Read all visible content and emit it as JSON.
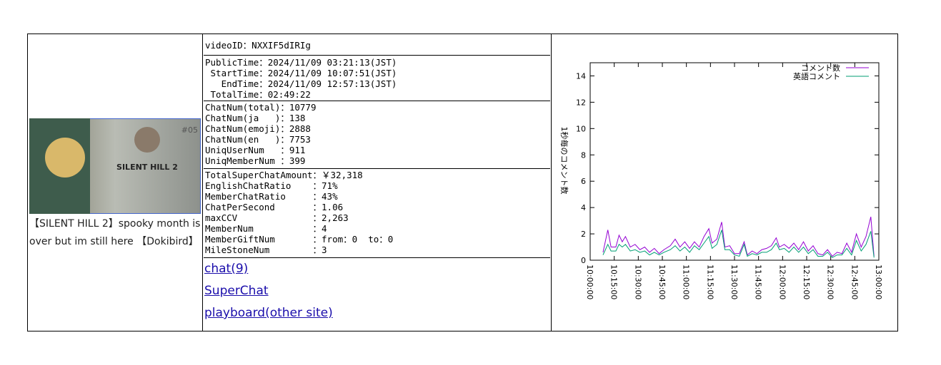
{
  "video": {
    "title": "【SILENT HILL 2】spooky month is over but im still here 【Dokibird】",
    "thumbnail": {
      "text": "SILENT HILL 2",
      "episode": "#05"
    }
  },
  "info": {
    "video_id": "videoID：NXXIF5dIRIg",
    "times": [
      "PublicTime：2024/11/09 03:21:13(JST)",
      " StartTime：2024/11/09 10:07:51(JST)",
      "   EndTime：2024/11/09 12:57:13(JST)",
      " TotalTime：02:49:22"
    ],
    "chat": [
      "ChatNum(total)：10779",
      "ChatNum(ja   )：138",
      "ChatNum(emoji)：2888",
      "ChatNum(en   )：7753",
      "UniqUserNum   ：911",
      "UniqMemberNum ：399"
    ],
    "stats": [
      "TotalSuperChatAmount：￥32,318",
      "EnglishChatRatio    ：71%",
      "MemberChatRatio     ：43%",
      "ChatPerSecond       ：1.06",
      "maxCCV              ：2,263",
      "MemberNum           ：4",
      "MemberGiftNum       ：from：0  to：0",
      "MileStoneNum        ：3"
    ]
  },
  "links": [
    "chat(9)",
    "SuperChat",
    "playboard(other site)"
  ],
  "chart_data": {
    "type": "line",
    "y_label": "1秒毎のコメント数",
    "x": [
      "10:08:00",
      "10:11:00",
      "10:13:00",
      "10:16:00",
      "10:18:00",
      "10:20:00",
      "10:22:00",
      "10:25:00",
      "10:28:00",
      "10:31:00",
      "10:34:00",
      "10:37:00",
      "10:40:00",
      "10:43:00",
      "10:46:00",
      "10:50:00",
      "10:53:00",
      "10:56:00",
      "10:59:00",
      "11:02:00",
      "11:05:00",
      "11:08:00",
      "11:11:00",
      "11:14:00",
      "11:16:00",
      "11:19:00",
      "11:22:00",
      "11:24:00",
      "11:27:00",
      "11:30:00",
      "11:33:00",
      "11:36:00",
      "11:38:00",
      "11:41:00",
      "11:44:00",
      "11:47:00",
      "11:50:00",
      "11:53:00",
      "11:56:00",
      "11:58:00",
      "12:01:00",
      "12:04:00",
      "12:07:00",
      "12:10:00",
      "12:13:00",
      "12:16:00",
      "12:19:00",
      "12:22:00",
      "12:25:00",
      "12:28:00",
      "12:31:00",
      "12:34:00",
      "12:37:00",
      "12:40:00",
      "12:43:00",
      "12:46:00",
      "12:49:00",
      "12:52:00",
      "12:55:00",
      "12:57:00"
    ],
    "series": [
      {
        "name": "コメント数",
        "color": "#9400d3",
        "values": [
          0.6,
          2.3,
          1.0,
          1.0,
          1.9,
          1.4,
          1.8,
          1.0,
          1.2,
          0.8,
          1.0,
          0.6,
          0.9,
          0.5,
          0.8,
          1.1,
          1.6,
          1.0,
          1.4,
          0.9,
          1.4,
          1.0,
          1.8,
          2.4,
          1.3,
          1.6,
          2.9,
          1.0,
          1.1,
          0.5,
          0.5,
          1.4,
          0.4,
          0.7,
          0.5,
          0.8,
          0.9,
          1.1,
          1.7,
          1.0,
          1.2,
          0.9,
          1.3,
          0.8,
          1.4,
          0.7,
          1.1,
          0.5,
          0.4,
          0.8,
          0.3,
          0.6,
          0.5,
          1.3,
          0.6,
          2.0,
          1.0,
          1.8,
          3.3,
          0.3
        ]
      },
      {
        "name": "英語コメント",
        "color": "#009e73",
        "values": [
          0.4,
          1.2,
          0.7,
          0.7,
          1.2,
          1.0,
          1.2,
          0.7,
          0.8,
          0.6,
          0.7,
          0.4,
          0.6,
          0.4,
          0.6,
          0.8,
          1.1,
          0.7,
          1.0,
          0.6,
          1.1,
          0.8,
          1.3,
          1.8,
          0.9,
          1.2,
          2.3,
          0.8,
          0.8,
          0.4,
          0.3,
          1.2,
          0.3,
          0.5,
          0.4,
          0.6,
          0.6,
          0.8,
          1.3,
          0.8,
          0.9,
          0.6,
          1.0,
          0.6,
          1.0,
          0.5,
          0.8,
          0.3,
          0.3,
          0.6,
          0.2,
          0.4,
          0.4,
          0.9,
          0.4,
          1.5,
          0.7,
          1.2,
          2.2,
          0.2
        ]
      }
    ],
    "xlim": [
      "10:00:00",
      "13:00:00"
    ],
    "xticks": [
      "10:00:00",
      "10:15:00",
      "10:30:00",
      "10:45:00",
      "11:00:00",
      "11:15:00",
      "11:30:00",
      "11:45:00",
      "12:00:00",
      "12:15:00",
      "12:30:00",
      "12:45:00",
      "13:00:00"
    ],
    "ylim": [
      0,
      15
    ],
    "yticks": [
      0,
      2,
      4,
      6,
      8,
      10,
      12,
      14
    ],
    "legend": "top-right"
  }
}
